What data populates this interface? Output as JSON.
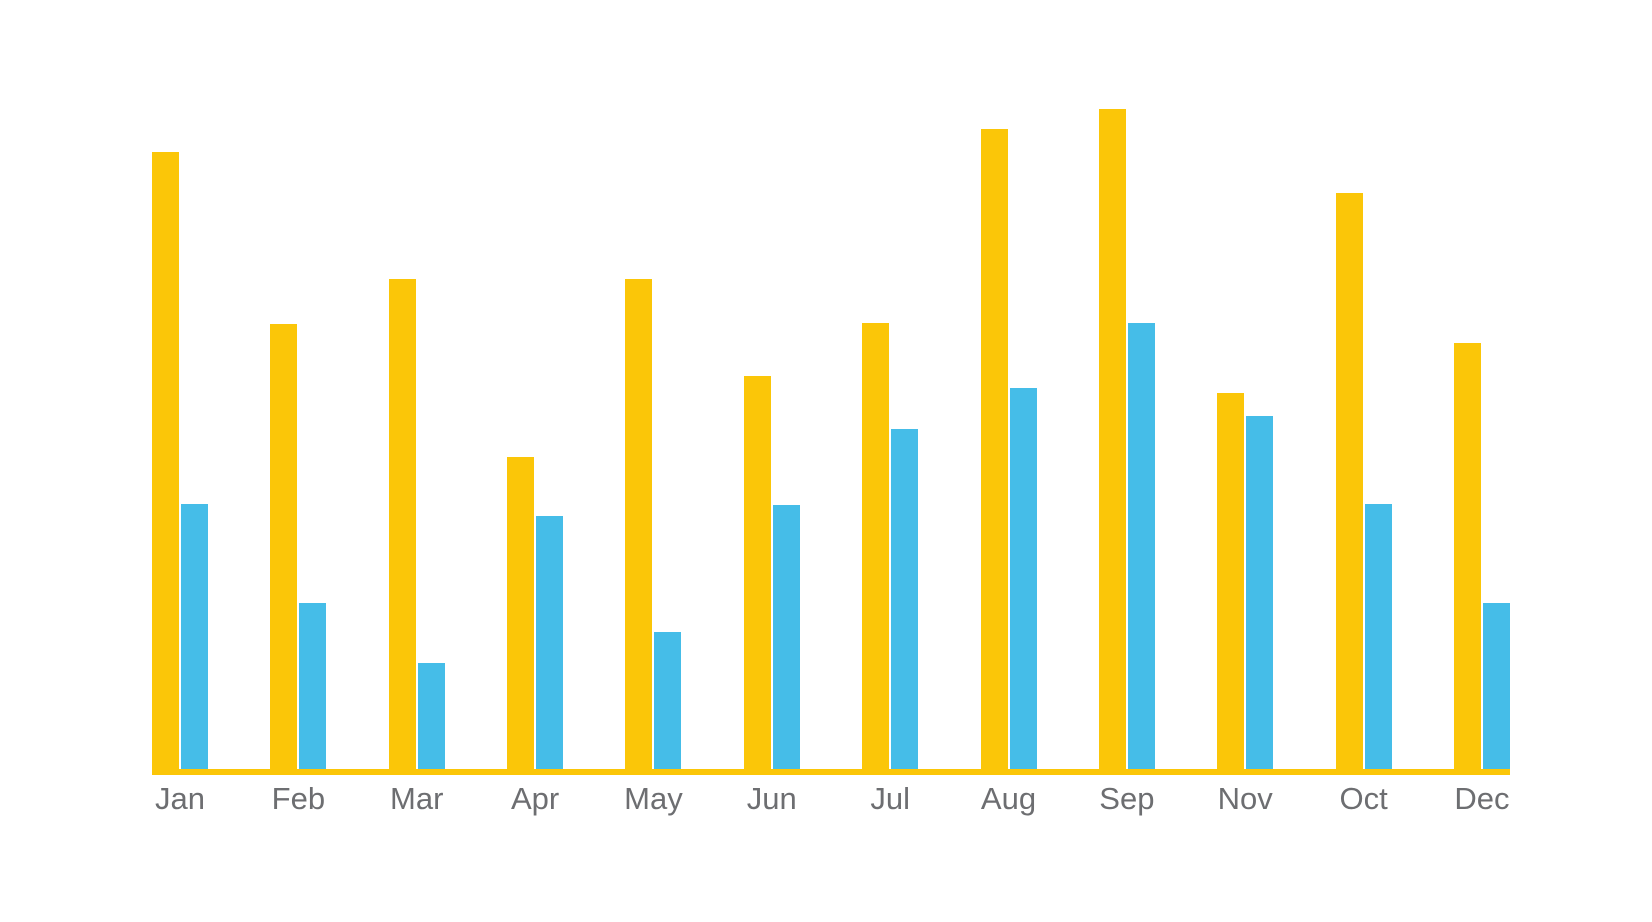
{
  "chart_data": {
    "type": "bar",
    "title": "",
    "xlabel": "",
    "ylabel": "",
    "categories": [
      "Jan",
      "Feb",
      "Mar",
      "Apr",
      "May",
      "Jun",
      "Jul",
      "Aug",
      "Sep",
      "Nov",
      "Oct",
      "Dec"
    ],
    "series": [
      {
        "id": "yellow",
        "name": "Yellow series",
        "color": "#fbc608",
        "values": [
          93.5,
          67.4,
          74.2,
          47.3,
          74.2,
          59.5,
          67.6,
          97.0,
          100.0,
          57.0,
          87.3,
          64.5
        ]
      },
      {
        "id": "blue",
        "name": "Blue series",
        "color": "#45bde8",
        "values": [
          40.2,
          25.2,
          16.1,
          38.3,
          20.8,
          40.0,
          51.5,
          57.7,
          67.6,
          53.5,
          40.2,
          25.2
        ]
      }
    ],
    "ylim": [
      0,
      100
    ],
    "y_axis_visible": false,
    "x_axis_line_visible": true,
    "grid": false,
    "legend": false,
    "note": "No numeric axis, gridlines, title or legend shown; values are relative estimates from bar heights (tallest yellow bar = 100). Category order as displayed, with Nov before Oct."
  },
  "colors": {
    "bar_yellow": "#fbc608",
    "bar_blue": "#45bde8",
    "axis_line": "#fbc608",
    "label_text": "#6d6e71",
    "background": "#ffffff"
  }
}
